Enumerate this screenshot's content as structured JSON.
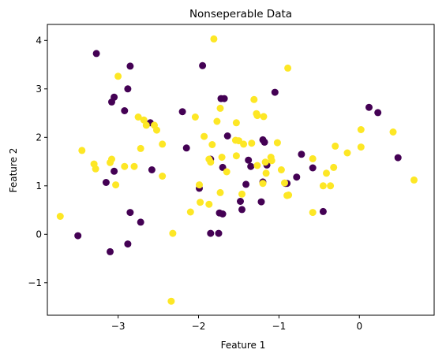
{
  "chart_data": {
    "type": "scatter",
    "title": "Nonseperable Data",
    "xlabel": "Feature 1",
    "ylabel": "Feature 2",
    "xlim": [
      -3.88,
      0.93
    ],
    "ylim": [
      -1.67,
      4.33
    ],
    "xticks": [
      -3,
      -2,
      -1,
      0
    ],
    "xtick_labels": [
      "−3",
      "−2",
      "−1",
      "0"
    ],
    "yticks": [
      -1,
      0,
      1,
      2,
      3,
      4
    ],
    "ytick_labels": [
      "−1",
      "0",
      "1",
      "2",
      "3",
      "4"
    ],
    "grid": false,
    "series": [
      {
        "color": "#440154",
        "x": [
          -3.27,
          -2.85,
          -3.08,
          -3.05,
          -2.92,
          -2.88,
          -2.6,
          -2.2,
          -1.95,
          -1.72,
          -1.68,
          -1.05,
          0.12,
          0.23,
          -2.58,
          -2.15,
          -1.85,
          -1.7,
          -1.75,
          -1.38,
          -1.2,
          -1.15,
          -0.72,
          -3.5,
          -3.15,
          -3.05,
          -3.1,
          -2.88,
          -2.85,
          -2.72,
          -1.99,
          -1.85,
          -1.74,
          -1.7,
          -1.64,
          -1.48,
          -1.46,
          -1.41,
          -1.35,
          -1.22,
          -1.2,
          -1.18,
          -0.92,
          -0.9,
          -0.78,
          -0.58,
          -0.45,
          0.48
        ],
        "y": [
          3.73,
          3.47,
          2.73,
          2.83,
          2.55,
          3.0,
          2.3,
          2.53,
          3.48,
          2.8,
          2.8,
          2.93,
          2.62,
          2.51,
          1.33,
          1.78,
          1.55,
          1.38,
          0.02,
          1.53,
          1.95,
          1.43,
          1.65,
          -0.03,
          1.07,
          1.3,
          -0.36,
          -0.2,
          0.45,
          0.25,
          0.95,
          0.02,
          0.44,
          0.42,
          2.03,
          0.68,
          0.51,
          1.03,
          1.4,
          0.67,
          1.08,
          1.9,
          1.05,
          1.05,
          1.18,
          1.37,
          0.47,
          1.58
        ]
      },
      {
        "color": "#fde725",
        "x": [
          -1.81,
          -0.89,
          -3.0,
          -2.68,
          -2.75,
          -2.55,
          -2.65,
          -2.52,
          -3.45,
          -3.3,
          -3.28,
          -3.1,
          -3.08,
          -2.92,
          -2.72,
          -3.03,
          -2.45,
          -3.72,
          -2.32,
          -2.34,
          -1.83,
          -1.73,
          -1.77,
          -1.5,
          -1.53,
          -1.31,
          -1.27,
          -1.19,
          -2.04,
          -1.93,
          -2.1,
          -1.98,
          -1.87,
          -1.85,
          -1.73,
          -1.71,
          -1.46,
          -1.44,
          -1.17,
          -1.1,
          -1.02,
          -0.88,
          -0.45,
          -0.58,
          -0.36,
          -0.3,
          -0.15,
          0.02,
          0.02,
          0.42,
          0.68,
          -2.8,
          -1.99,
          -1.87,
          -1.53,
          -1.28,
          -1.2,
          -1.27,
          -1.16,
          -1.34,
          -1.09,
          -0.97,
          -0.9,
          -0.93,
          -0.58,
          -0.41,
          -0.32,
          -2.45,
          -1.65,
          -1.54
        ],
        "y": [
          4.03,
          3.43,
          3.26,
          2.36,
          2.42,
          2.25,
          2.25,
          2.15,
          1.73,
          1.45,
          1.35,
          1.48,
          1.55,
          1.4,
          1.77,
          1.02,
          1.2,
          0.37,
          0.02,
          -1.38,
          1.85,
          2.6,
          2.33,
          1.93,
          2.3,
          2.78,
          2.45,
          2.43,
          2.42,
          2.02,
          0.46,
          0.66,
          0.62,
          1.49,
          0.86,
          1.59,
          0.83,
          1.86,
          1.49,
          1.59,
          1.89,
          0.81,
          1.0,
          0.45,
          1.0,
          1.82,
          1.68,
          1.8,
          2.16,
          2.11,
          1.12,
          1.4,
          1.02,
          1.55,
          1.62,
          2.49,
          1.05,
          1.42,
          1.26,
          1.88,
          1.52,
          1.33,
          0.8,
          1.06,
          1.56,
          1.26,
          1.38,
          1.86,
          1.29,
          1.94
        ]
      }
    ]
  }
}
